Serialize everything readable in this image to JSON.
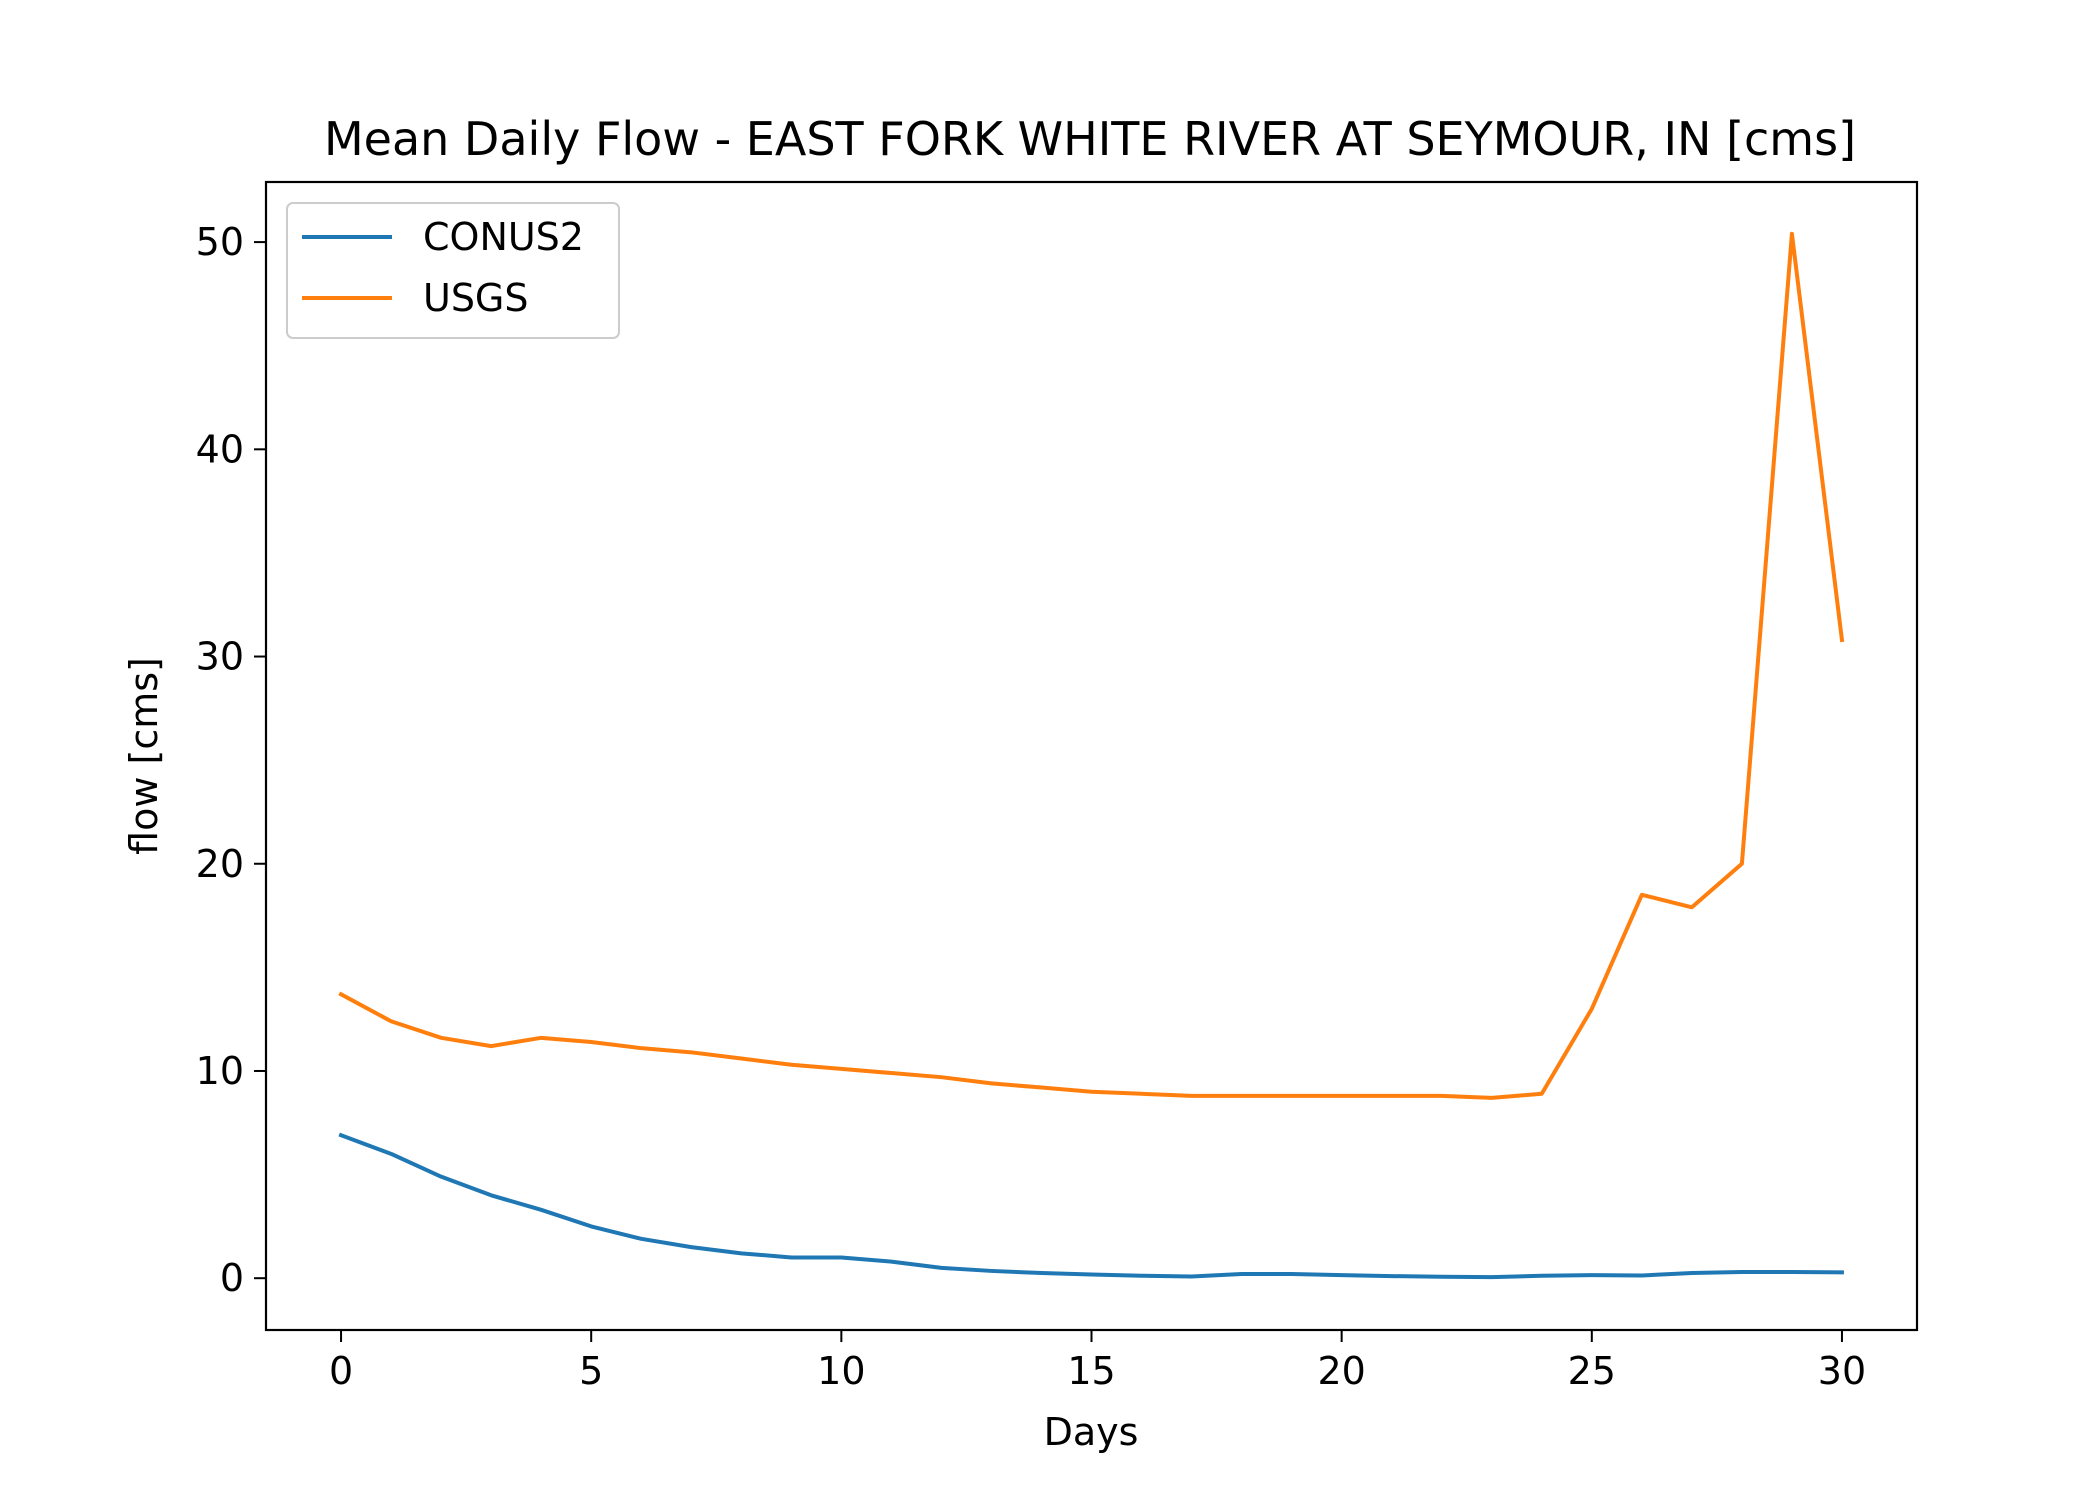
{
  "chart_data": {
    "type": "line",
    "title": "Mean Daily Flow - EAST FORK WHITE RIVER AT SEYMOUR, IN [cms]",
    "xlabel": "Days",
    "ylabel": "flow [cms]",
    "xlim": [
      -1.5,
      31.5
    ],
    "ylim": [
      -2.5,
      52.9
    ],
    "xticks": [
      0,
      5,
      10,
      15,
      20,
      25,
      30
    ],
    "yticks": [
      0,
      10,
      20,
      30,
      40,
      50
    ],
    "grid": false,
    "legend_position": "upper-left",
    "x": [
      0,
      1,
      2,
      3,
      4,
      5,
      6,
      7,
      8,
      9,
      10,
      11,
      12,
      13,
      14,
      15,
      16,
      17,
      18,
      19,
      20,
      21,
      22,
      23,
      24,
      25,
      26,
      27,
      28,
      29,
      30
    ],
    "series": [
      {
        "name": "CONUS2",
        "color": "#1f77b4",
        "values": [
          6.9,
          6.0,
          4.9,
          4.0,
          3.3,
          2.5,
          1.9,
          1.5,
          1.2,
          1.0,
          1.0,
          0.8,
          0.5,
          0.35,
          0.25,
          0.18,
          0.12,
          0.08,
          0.2,
          0.2,
          0.15,
          0.1,
          0.07,
          0.05,
          0.12,
          0.15,
          0.13,
          0.25,
          0.3,
          0.3,
          0.28
        ]
      },
      {
        "name": "USGS",
        "color": "#ff7f0e",
        "values": [
          13.7,
          12.4,
          11.6,
          11.2,
          11.6,
          11.4,
          11.1,
          10.9,
          10.6,
          10.3,
          10.1,
          9.9,
          9.7,
          9.4,
          9.2,
          9.0,
          8.9,
          8.8,
          8.8,
          8.8,
          8.8,
          8.8,
          8.8,
          8.7,
          8.9,
          13.0,
          18.5,
          17.9,
          20.0,
          50.4,
          30.8
        ]
      }
    ]
  }
}
